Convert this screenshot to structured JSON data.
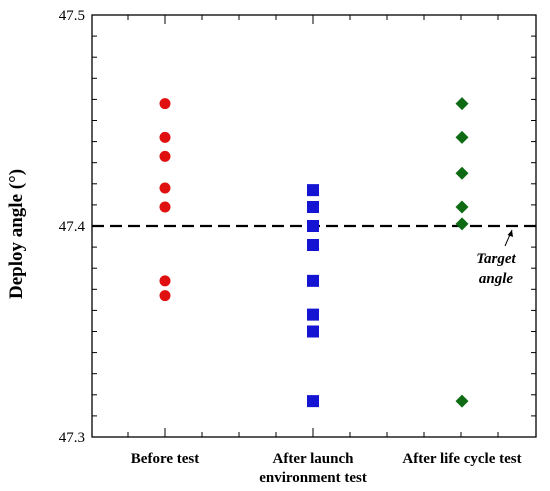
{
  "chart_data": {
    "type": "scatter",
    "title": "",
    "xlabel": "",
    "ylabel": "Deploy angle (°)",
    "ylim": [
      47.3,
      47.5
    ],
    "yticks": [
      "47.3",
      "47.4",
      "47.5"
    ],
    "y_minor_step": 0.01,
    "grid": false,
    "legend": "none",
    "categories": [
      [
        "Before test"
      ],
      [
        "After launch",
        "environment test"
      ],
      [
        "After life cycle test"
      ]
    ],
    "series": [
      {
        "marker": "circle",
        "color": "#e01010",
        "category_index": 0,
        "values": [
          47.458,
          47.442,
          47.433,
          47.418,
          47.409,
          47.374,
          47.367
        ]
      },
      {
        "marker": "square",
        "color": "#1414d2",
        "category_index": 1,
        "values": [
          47.417,
          47.409,
          47.4,
          47.391,
          47.374,
          47.358,
          47.35,
          47.317
        ]
      },
      {
        "marker": "diamond",
        "color": "#0e6b14",
        "category_index": 2,
        "values": [
          47.458,
          47.442,
          47.425,
          47.409,
          47.401,
          47.317
        ]
      }
    ],
    "reference_line": {
      "value": 47.4,
      "style": "dashed",
      "color": "#000000"
    },
    "annotation": {
      "lines": [
        "Target",
        "angle"
      ],
      "points_to": 47.4
    }
  }
}
